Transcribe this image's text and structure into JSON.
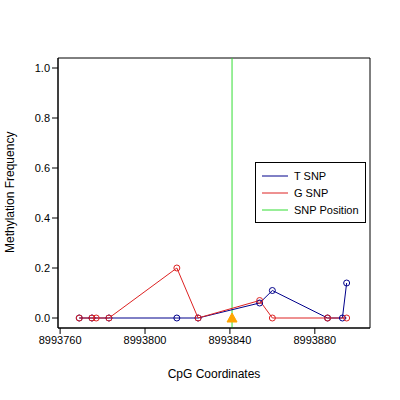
{
  "chart_data": {
    "type": "line",
    "x_label": "CpG Coordinates",
    "y_label": "Methylation Frequency",
    "xlim": [
      8993759,
      8993906
    ],
    "xticks": [
      8993760,
      8993800,
      8993840,
      8993880
    ],
    "ylim": [
      -0.04,
      1.04
    ],
    "yticks": [
      {
        "value": 0,
        "label": "0.0"
      },
      {
        "value": 0.2,
        "label": "0.2"
      },
      {
        "value": 0.4,
        "label": "0.4"
      },
      {
        "value": 0.6,
        "label": "0.6"
      },
      {
        "value": 0.8,
        "label": "0.8"
      },
      {
        "value": 1,
        "label": "1.0"
      }
    ],
    "legend": "right",
    "marker": "circle",
    "series": [
      {
        "name": "T SNP",
        "color": "#00008b",
        "x": [
          8993769,
          8993775,
          8993783,
          8993815,
          8993825,
          8993854,
          8993860,
          8993886,
          8993893,
          8993895
        ],
        "values": [
          0,
          0,
          0,
          0,
          0,
          0.06,
          0.11,
          0,
          0,
          0.14
        ]
      },
      {
        "name": "G SNP",
        "color": "#dd2222",
        "x": [
          8993769,
          8993775,
          8993777,
          8993783,
          8993815,
          8993825,
          8993854,
          8993860,
          8993886,
          8993895
        ],
        "values": [
          0,
          0,
          0,
          0,
          0.2,
          0,
          0.07,
          0,
          0,
          0
        ]
      }
    ],
    "snp_position": {
      "name": "SNP Position",
      "color": "#33dd33",
      "x": 8993841
    },
    "snp_marker": {
      "x": 8993841,
      "y": 0,
      "color": "#ffa500",
      "marker": "triangle"
    }
  }
}
